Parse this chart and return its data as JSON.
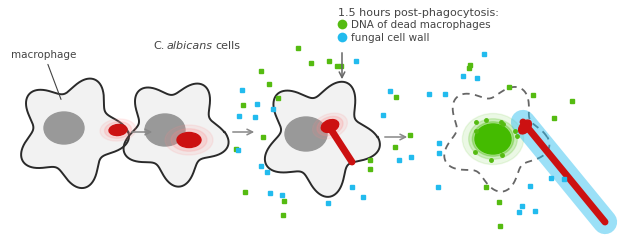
{
  "bg_color": "#ffffff",
  "macro_fill": "#f2f2f2",
  "macro_outline": "#2a2a2a",
  "nucleus_fill": "#999999",
  "fungus_red": "#cc1111",
  "fungus_glow": "#ff8888",
  "green_color": "#55bb11",
  "blue_color": "#22bbee",
  "dna_green": "#44bb00",
  "arrow_color": "#888888",
  "text_color": "#444444",
  "dashed_outline": "#666666",
  "label_macrophage": "macrophage",
  "label_C": "C.",
  "label_albicans": "albicans",
  "label_cells": "cells",
  "label_time": "1.5 hours post-phagocytosis:",
  "label_green": "DNA of dead macrophages",
  "label_blue": "fungal cell wall",
  "figw": 6.42,
  "figh": 2.51,
  "dpi": 100
}
